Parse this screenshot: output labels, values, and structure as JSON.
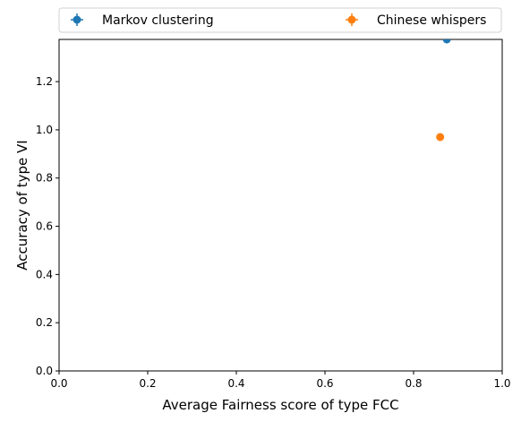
{
  "chart_data": {
    "type": "scatter",
    "xlabel": "Average Fairness score of type FCC",
    "ylabel": "Accuracy of type VI",
    "xlim": [
      0,
      1.0
    ],
    "ylim": [
      0,
      1.375
    ],
    "x_ticks": [
      "0.0",
      "0.2",
      "0.4",
      "0.6",
      "0.8",
      "1.0"
    ],
    "y_ticks": [
      "0.0",
      "0.2",
      "0.4",
      "0.6",
      "0.8",
      "1.0",
      "1.2"
    ],
    "grid": false,
    "legend_position": "top, above plot, 2 columns",
    "series": [
      {
        "name": "Markov clustering",
        "color": "#1f77b4",
        "points": [
          {
            "x": 0.875,
            "y": 1.375
          }
        ]
      },
      {
        "name": "Chinese whispers",
        "color": "#ff7f0e",
        "points": [
          {
            "x": 0.86,
            "y": 0.97
          }
        ]
      }
    ]
  }
}
